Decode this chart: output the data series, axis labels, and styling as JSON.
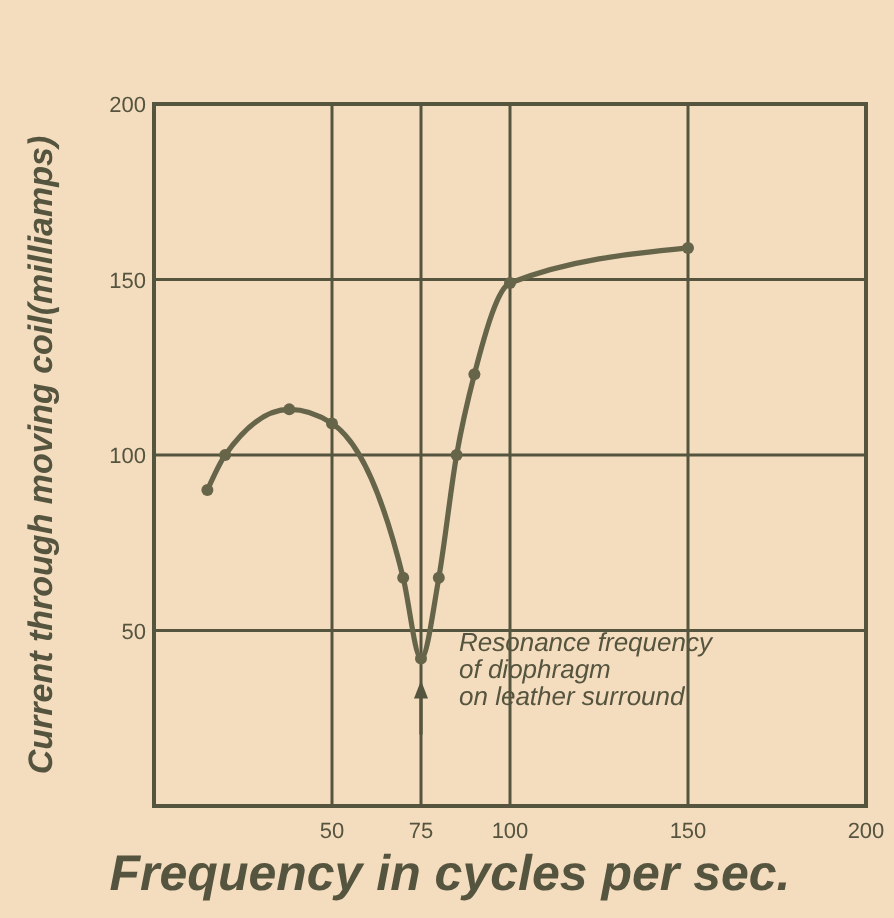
{
  "chart_data": {
    "type": "line",
    "xlabel": "Frequency in cycles per sec.",
    "ylabel": "Current through moving coil(milliamps)",
    "x": [
      15,
      20,
      38,
      50,
      70,
      75,
      80,
      85,
      90,
      100,
      150
    ],
    "series": [
      {
        "color": "#66654a",
        "values": [
          90,
          100,
          113,
          109,
          65,
          42,
          65,
          100,
          123,
          149,
          159
        ]
      }
    ],
    "xlim": [
      0,
      200
    ],
    "xticks": [
      50,
      75,
      100,
      150,
      200
    ],
    "ylim": [
      0,
      200
    ],
    "yticks": [
      50,
      100,
      150,
      200
    ],
    "grid": true,
    "marker": "circle",
    "line_style": "solid",
    "annotations": [
      {
        "text": "Resonance frequency\nof diophragm\non leather surround",
        "x": 75,
        "y": 42
      }
    ]
  }
}
